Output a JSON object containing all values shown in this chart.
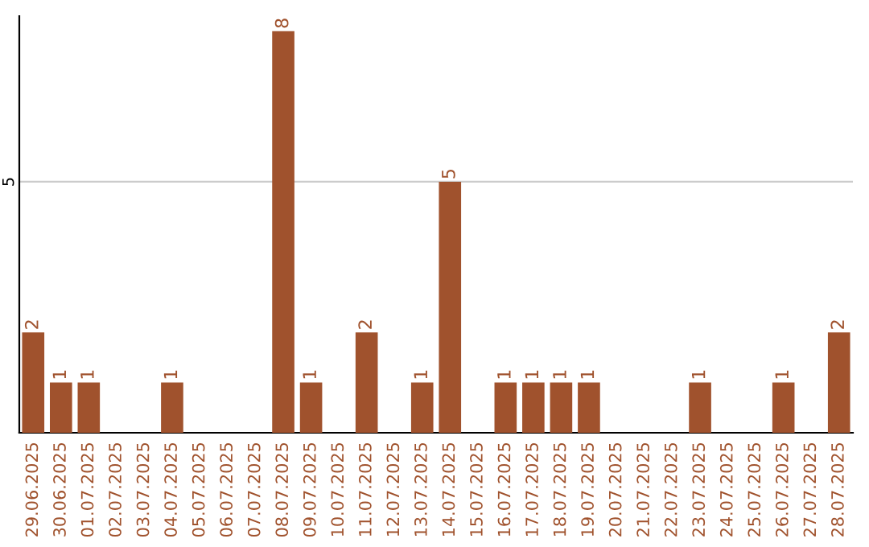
{
  "chart_data": {
    "type": "bar",
    "categories": [
      "29.06.2025",
      "30.06.2025",
      "01.07.2025",
      "02.07.2025",
      "03.07.2025",
      "04.07.2025",
      "05.07.2025",
      "06.07.2025",
      "07.07.2025",
      "08.07.2025",
      "09.07.2025",
      "10.07.2025",
      "11.07.2025",
      "12.07.2025",
      "13.07.2025",
      "14.07.2025",
      "15.07.2025",
      "16.07.2025",
      "17.07.2025",
      "18.07.2025",
      "19.07.2025",
      "20.07.2025",
      "21.07.2025",
      "22.07.2025",
      "23.07.2025",
      "24.07.2025",
      "25.07.2025",
      "26.07.2025",
      "27.07.2025",
      "28.07.2025"
    ],
    "values": [
      2,
      1,
      1,
      0,
      0,
      1,
      0,
      0,
      0,
      8,
      1,
      0,
      2,
      0,
      1,
      5,
      0,
      1,
      1,
      1,
      1,
      0,
      0,
      0,
      1,
      0,
      0,
      1,
      0,
      2
    ],
    "value_labels": [
      "2",
      "1",
      "1",
      null,
      null,
      "1",
      null,
      null,
      null,
      "8",
      "1",
      null,
      "2",
      null,
      "1",
      "5",
      null,
      "1",
      "1",
      "1",
      "1",
      null,
      null,
      null,
      "1",
      null,
      null,
      "1",
      null,
      "2"
    ],
    "color": "#a0522d",
    "ylim": [
      0,
      8.3
    ],
    "yticks": [
      5
    ],
    "grid": "y"
  }
}
